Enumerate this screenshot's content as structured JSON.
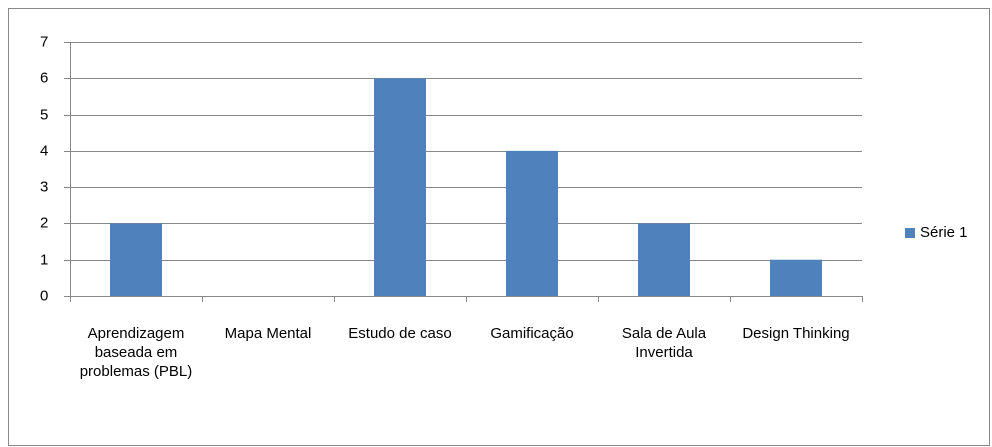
{
  "chart_data": {
    "type": "bar",
    "categories": [
      "Aprendizagem baseada em problemas (PBL)",
      "Mapa Mental",
      "Estudo de caso",
      "Gamificação",
      "Sala de Aula Invertida",
      "Design Thinking"
    ],
    "series": [
      {
        "name": "Série 1",
        "color": "#4f81bd",
        "values": [
          2,
          0,
          6,
          4,
          2,
          1
        ]
      }
    ],
    "ylim": [
      0,
      7
    ],
    "yticks": [
      0,
      1,
      2,
      3,
      4,
      5,
      6,
      7
    ],
    "grid": true,
    "legend": "right"
  }
}
